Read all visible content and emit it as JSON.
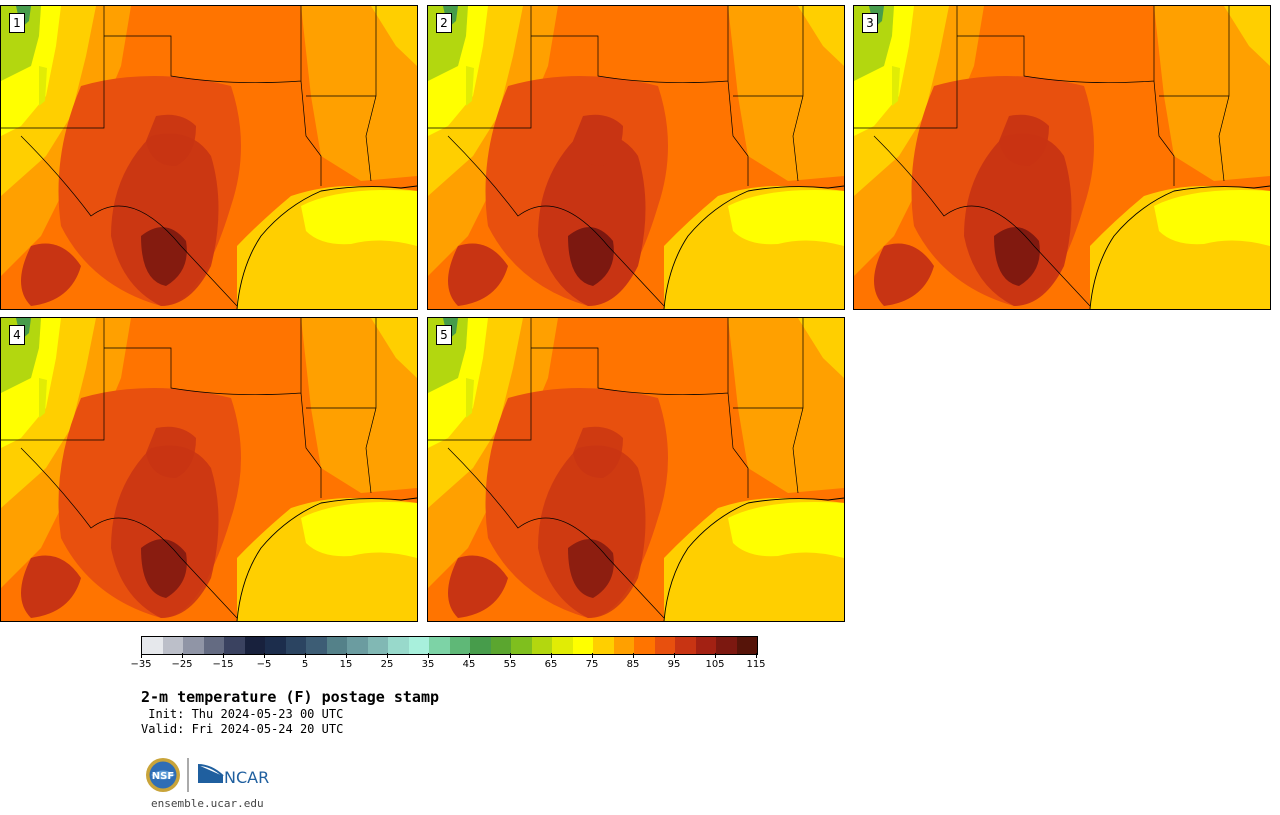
{
  "panels": [
    {
      "label": "1",
      "hot": 0.9
    },
    {
      "label": "2",
      "hot": 1.0
    },
    {
      "label": "3",
      "hot": 0.95
    },
    {
      "label": "4",
      "hot": 0.85
    },
    {
      "label": "5",
      "hot": 0.8
    }
  ],
  "colorbar": {
    "colors": [
      "#e6e8ec",
      "#bcbfc9",
      "#9095a6",
      "#646b82",
      "#3a4260",
      "#18213d",
      "#1c2d4c",
      "#2b4461",
      "#3d5d75",
      "#548189",
      "#6b9ca0",
      "#81b8b4",
      "#98d9cb",
      "#a8f0dc",
      "#7dd3a6",
      "#5fb877",
      "#479c4b",
      "#5ba62f",
      "#7fbf1e",
      "#b3d70f",
      "#e1ec05",
      "#ffff00",
      "#ffcf00",
      "#ffa000",
      "#ff7400",
      "#e8500e",
      "#c83413",
      "#a32113",
      "#7c1810",
      "#561409"
    ],
    "ticks": [
      "−35",
      "−25",
      "−15",
      "−5",
      "5",
      "15",
      "25",
      "35",
      "45",
      "55",
      "65",
      "75",
      "85",
      "95",
      "105",
      "115"
    ]
  },
  "title": "2-m temperature (F) postage stamp",
  "init": " Init: Thu 2024-05-23 00 UTC",
  "valid": "Valid: Fri 2024-05-24 20 UTC",
  "logos": {
    "nsf": "NSF",
    "ncar": "NCAR"
  },
  "site": "ensemble.ucar.edu"
}
